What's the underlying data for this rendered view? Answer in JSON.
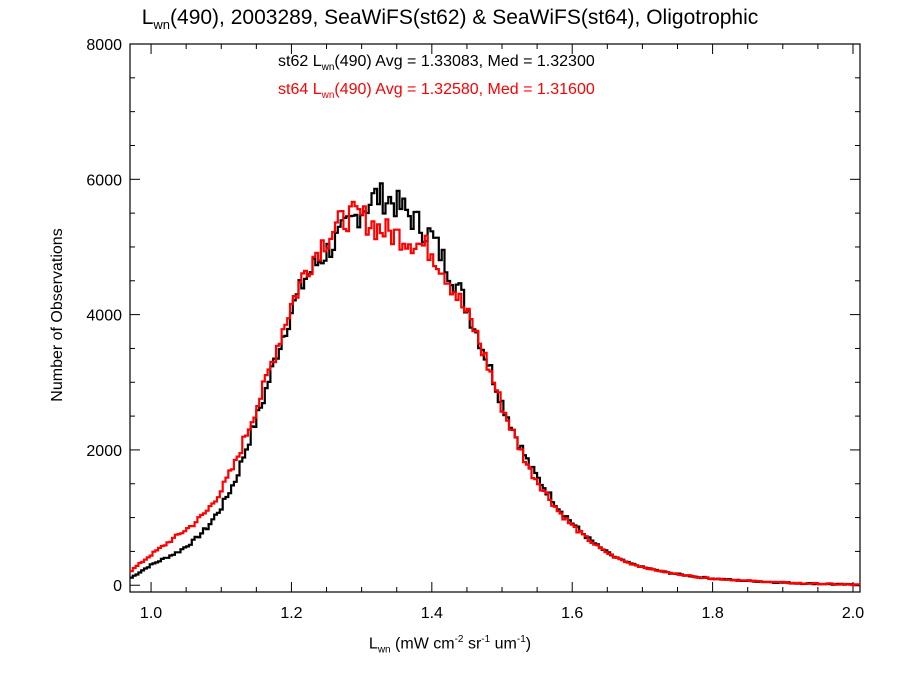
{
  "chart_data": {
    "type": "line",
    "title_main": "L",
    "title_sub": "wn",
    "title_rest": "(490), 2003289, SeaWiFS(st62) & SeaWiFS(st64), Oligotrophic",
    "xlabel_main": "L",
    "xlabel_sub": "wn",
    "xlabel_units": " (mW cm",
    "xlabel_sup1": "-2",
    "xlabel_mid1": " sr",
    "xlabel_sup2": "-1",
    "xlabel_mid2": " um",
    "xlabel_sup3": "-1",
    "xlabel_end": ")",
    "ylabel": "Number of Observations",
    "xlim": [
      0.97,
      2.01
    ],
    "ylim": [
      -100,
      8000
    ],
    "xticks": [
      1.0,
      1.2,
      1.4,
      1.6,
      1.8,
      2.0
    ],
    "xtick_labels": [
      "1.0",
      "1.2",
      "1.4",
      "1.6",
      "1.8",
      "2.0"
    ],
    "yticks": [
      0,
      2000,
      4000,
      6000,
      8000
    ],
    "ytick_labels": [
      "0",
      "2000",
      "4000",
      "6000",
      "8000"
    ],
    "annotations": [
      {
        "prefix": "st62 L",
        "sub": "wn",
        "suffix": "(490) Avg = 1.33083, Med = 1.32300",
        "color": "#000000"
      },
      {
        "prefix": "st64 L",
        "sub": "wn",
        "suffix": "(490) Avg = 1.32580, Med = 1.31600",
        "color": "#ff0000"
      }
    ],
    "bin_width": 0.004,
    "series": [
      {
        "color": "#000000",
        "x": [
          0.97,
          1.0,
          1.02,
          1.04,
          1.06,
          1.08,
          1.1,
          1.12,
          1.14,
          1.16,
          1.18,
          1.2,
          1.22,
          1.24,
          1.26,
          1.28,
          1.3,
          1.32,
          1.34,
          1.36,
          1.38,
          1.4,
          1.42,
          1.44,
          1.46,
          1.48,
          1.5,
          1.52,
          1.54,
          1.56,
          1.58,
          1.6,
          1.62,
          1.64,
          1.66,
          1.68,
          1.7,
          1.72,
          1.74,
          1.76,
          1.78,
          1.8,
          1.82,
          1.84,
          1.86,
          1.88,
          1.9,
          1.92,
          1.94,
          1.96,
          1.98,
          2.0
        ],
        "y": [
          100,
          300,
          400,
          500,
          650,
          850,
          1150,
          1550,
          2150,
          2750,
          3450,
          4050,
          4550,
          4800,
          5050,
          5300,
          5550,
          5750,
          5700,
          5550,
          5350,
          5150,
          4750,
          4350,
          3850,
          3300,
          2700,
          2200,
          1750,
          1450,
          1150,
          920,
          720,
          550,
          420,
          330,
          270,
          220,
          180,
          150,
          120,
          100,
          85,
          70,
          60,
          50,
          40,
          30,
          25,
          20,
          12,
          8
        ]
      },
      {
        "color": "#ff0000",
        "x": [
          0.97,
          1.0,
          1.02,
          1.04,
          1.06,
          1.08,
          1.1,
          1.12,
          1.14,
          1.16,
          1.18,
          1.2,
          1.22,
          1.24,
          1.26,
          1.28,
          1.3,
          1.32,
          1.34,
          1.36,
          1.38,
          1.4,
          1.42,
          1.44,
          1.46,
          1.48,
          1.5,
          1.52,
          1.54,
          1.56,
          1.58,
          1.6,
          1.62,
          1.64,
          1.66,
          1.68,
          1.7,
          1.72,
          1.74,
          1.76,
          1.78,
          1.8,
          1.82,
          1.84,
          1.86,
          1.88,
          1.9,
          1.92,
          1.94,
          1.96,
          1.98,
          2.0
        ],
        "y": [
          200,
          450,
          600,
          750,
          900,
          1100,
          1400,
          1800,
          2350,
          2900,
          3550,
          4150,
          4650,
          5000,
          5250,
          5450,
          5450,
          5300,
          5200,
          5150,
          5050,
          4950,
          4600,
          4200,
          3800,
          3250,
          2650,
          2150,
          1700,
          1400,
          1100,
          880,
          700,
          540,
          420,
          330,
          270,
          220,
          180,
          150,
          120,
          100,
          85,
          70,
          60,
          50,
          40,
          30,
          25,
          20,
          12,
          8
        ]
      }
    ]
  }
}
